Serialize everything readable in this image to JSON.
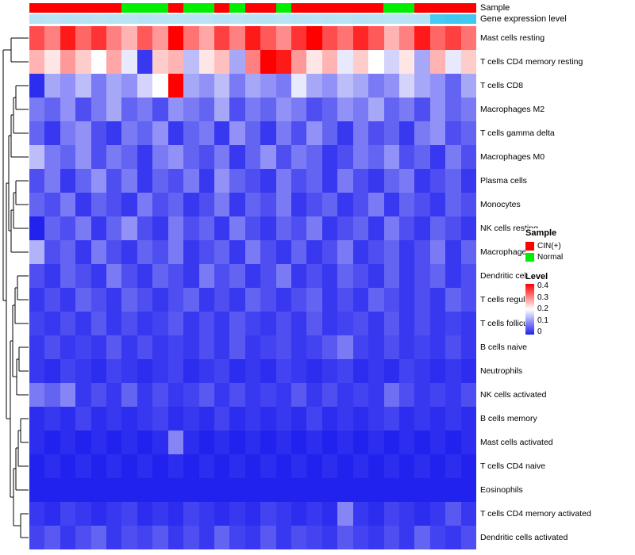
{
  "annotations": {
    "sample_label": "Sample",
    "gene_label": "Gene expression level",
    "sample_values": [
      "CIN(+)",
      "CIN(+)",
      "CIN(+)",
      "CIN(+)",
      "CIN(+)",
      "CIN(+)",
      "Normal",
      "Normal",
      "Normal",
      "CIN(+)",
      "Normal",
      "Normal",
      "CIN(+)",
      "Normal",
      "CIN(+)",
      "CIN(+)",
      "Normal",
      "CIN(+)",
      "CIN(+)",
      "CIN(+)",
      "CIN(+)",
      "CIN(+)",
      "CIN(+)",
      "Normal",
      "Normal",
      "CIN(+)",
      "CIN(+)",
      "CIN(+)",
      "CIN(+)"
    ],
    "gene_values": [
      0.15,
      0.14,
      0.16,
      0.15,
      0.13,
      0.15,
      0.14,
      0.16,
      0.15,
      0.14,
      0.15,
      0.13,
      0.16,
      0.14,
      0.15,
      0.16,
      0.14,
      0.15,
      0.13,
      0.15,
      0.14,
      0.16,
      0.15,
      0.14,
      0.15,
      0.16,
      0.85,
      0.9,
      0.88
    ],
    "colors": {
      "CIN(+)": "#FF0000",
      "Normal": "#00EE00",
      "gene_low": "#CFE9F6",
      "gene_high": "#2EC4F0"
    }
  },
  "chart_data": {
    "type": "heatmap",
    "title": "",
    "rows": [
      "Mast cells resting",
      "T cells CD4 memory resting",
      "T cells CD8",
      "Macrophages M2",
      "T cells gamma delta",
      "Macrophages M0",
      "Plasma cells",
      "Monocytes",
      "NK cells resting",
      "Macrophages M1",
      "Dendritic cells resting",
      "T cells regulatory (Tregs)",
      "T cells follicular helper",
      "B cells naive",
      "Neutrophils",
      "NK cells activated",
      "B cells memory",
      "Mast cells activated",
      "T cells CD4 naive",
      "Eosinophils",
      "T cells CD4 memory activated",
      "Dendritic cells activated"
    ],
    "columns_count": 29,
    "value_range": [
      0,
      0.4
    ],
    "colormap": {
      "low": "#2222EE",
      "mid": "#FFFFFF",
      "high": "#FF0000",
      "midpoint": 0.2
    },
    "values": [
      [
        0.34,
        0.3,
        0.38,
        0.32,
        0.36,
        0.3,
        0.26,
        0.33,
        0.28,
        0.4,
        0.31,
        0.27,
        0.35,
        0.3,
        0.38,
        0.33,
        0.29,
        0.36,
        0.4,
        0.34,
        0.31,
        0.37,
        0.33,
        0.26,
        0.3,
        0.38,
        0.32,
        0.35,
        0.31
      ],
      [
        0.26,
        0.22,
        0.28,
        0.24,
        0.2,
        0.27,
        0.18,
        0.02,
        0.24,
        0.26,
        0.14,
        0.22,
        0.25,
        0.12,
        0.3,
        0.4,
        0.38,
        0.28,
        0.22,
        0.26,
        0.18,
        0.24,
        0.2,
        0.16,
        0.22,
        0.12,
        0.26,
        0.18,
        0.24
      ],
      [
        0.01,
        0.12,
        0.1,
        0.14,
        0.08,
        0.12,
        0.1,
        0.16,
        0.2,
        0.4,
        0.12,
        0.1,
        0.14,
        0.08,
        0.12,
        0.1,
        0.08,
        0.18,
        0.12,
        0.1,
        0.14,
        0.12,
        0.08,
        0.1,
        0.16,
        0.12,
        0.1,
        0.06,
        0.12
      ],
      [
        0.08,
        0.06,
        0.1,
        0.04,
        0.08,
        0.12,
        0.06,
        0.08,
        0.04,
        0.1,
        0.08,
        0.06,
        0.12,
        0.04,
        0.08,
        0.06,
        0.1,
        0.08,
        0.04,
        0.06,
        0.1,
        0.08,
        0.12,
        0.06,
        0.08,
        0.04,
        0.1,
        0.06,
        0.08
      ],
      [
        0.06,
        0.02,
        0.08,
        0.1,
        0.04,
        0.02,
        0.08,
        0.06,
        0.1,
        0.02,
        0.06,
        0.08,
        0.02,
        0.1,
        0.06,
        0.02,
        0.08,
        0.04,
        0.1,
        0.06,
        0.02,
        0.08,
        0.04,
        0.06,
        0.02,
        0.08,
        0.1,
        0.04,
        0.06
      ],
      [
        0.14,
        0.08,
        0.06,
        0.1,
        0.04,
        0.08,
        0.06,
        0.02,
        0.08,
        0.1,
        0.06,
        0.04,
        0.08,
        0.02,
        0.06,
        0.1,
        0.04,
        0.08,
        0.06,
        0.02,
        0.04,
        0.08,
        0.06,
        0.1,
        0.04,
        0.06,
        0.02,
        0.08,
        0.04
      ],
      [
        0.04,
        0.08,
        0.02,
        0.06,
        0.1,
        0.04,
        0.08,
        0.02,
        0.06,
        0.04,
        0.08,
        0.02,
        0.1,
        0.06,
        0.04,
        0.02,
        0.08,
        0.04,
        0.06,
        0.02,
        0.08,
        0.04,
        0.02,
        0.06,
        0.08,
        0.02,
        0.04,
        0.06,
        0.02
      ],
      [
        0.06,
        0.04,
        0.08,
        0.02,
        0.06,
        0.04,
        0.02,
        0.08,
        0.04,
        0.06,
        0.02,
        0.04,
        0.08,
        0.02,
        0.06,
        0.04,
        0.08,
        0.02,
        0.04,
        0.06,
        0.02,
        0.04,
        0.08,
        0.02,
        0.06,
        0.04,
        0.02,
        0.06,
        0.04
      ],
      [
        0.0,
        0.06,
        0.04,
        0.08,
        0.02,
        0.06,
        0.1,
        0.04,
        0.02,
        0.08,
        0.04,
        0.06,
        0.02,
        0.08,
        0.04,
        0.02,
        0.06,
        0.04,
        0.08,
        0.02,
        0.04,
        0.06,
        0.02,
        0.08,
        0.04,
        0.02,
        0.06,
        0.04,
        0.02
      ],
      [
        0.13,
        0.04,
        0.06,
        0.02,
        0.08,
        0.04,
        0.02,
        0.06,
        0.04,
        0.08,
        0.02,
        0.04,
        0.06,
        0.02,
        0.08,
        0.04,
        0.02,
        0.06,
        0.02,
        0.04,
        0.08,
        0.02,
        0.04,
        0.06,
        0.02,
        0.04,
        0.08,
        0.02,
        0.06
      ],
      [
        0.04,
        0.02,
        0.06,
        0.04,
        0.02,
        0.08,
        0.04,
        0.02,
        0.06,
        0.04,
        0.02,
        0.08,
        0.04,
        0.06,
        0.02,
        0.04,
        0.08,
        0.02,
        0.04,
        0.02,
        0.06,
        0.04,
        0.02,
        0.06,
        0.02,
        0.04,
        0.06,
        0.02,
        0.04
      ],
      [
        0.02,
        0.04,
        0.02,
        0.06,
        0.04,
        0.02,
        0.06,
        0.04,
        0.02,
        0.04,
        0.06,
        0.02,
        0.04,
        0.02,
        0.06,
        0.04,
        0.02,
        0.04,
        0.06,
        0.02,
        0.04,
        0.02,
        0.06,
        0.04,
        0.02,
        0.04,
        0.02,
        0.06,
        0.04
      ],
      [
        0.03,
        0.02,
        0.04,
        0.02,
        0.05,
        0.02,
        0.04,
        0.02,
        0.03,
        0.05,
        0.02,
        0.04,
        0.02,
        0.05,
        0.03,
        0.02,
        0.04,
        0.02,
        0.05,
        0.02,
        0.03,
        0.04,
        0.02,
        0.05,
        0.02,
        0.04,
        0.02,
        0.03,
        0.02
      ],
      [
        0.02,
        0.04,
        0.02,
        0.03,
        0.02,
        0.05,
        0.02,
        0.04,
        0.02,
        0.03,
        0.02,
        0.04,
        0.02,
        0.05,
        0.02,
        0.03,
        0.04,
        0.02,
        0.03,
        0.05,
        0.08,
        0.03,
        0.02,
        0.04,
        0.02,
        0.03,
        0.02,
        0.04,
        0.02
      ],
      [
        0.02,
        0.01,
        0.03,
        0.02,
        0.01,
        0.03,
        0.02,
        0.01,
        0.02,
        0.03,
        0.01,
        0.02,
        0.03,
        0.01,
        0.02,
        0.01,
        0.03,
        0.02,
        0.01,
        0.02,
        0.03,
        0.01,
        0.02,
        0.01,
        0.03,
        0.02,
        0.01,
        0.02,
        0.01
      ],
      [
        0.08,
        0.06,
        0.09,
        0.02,
        0.04,
        0.02,
        0.06,
        0.02,
        0.04,
        0.02,
        0.03,
        0.05,
        0.02,
        0.04,
        0.02,
        0.03,
        0.02,
        0.05,
        0.02,
        0.04,
        0.02,
        0.03,
        0.02,
        0.07,
        0.04,
        0.02,
        0.03,
        0.02,
        0.04
      ],
      [
        0.01,
        0.02,
        0.01,
        0.03,
        0.01,
        0.02,
        0.01,
        0.02,
        0.03,
        0.01,
        0.02,
        0.01,
        0.03,
        0.01,
        0.02,
        0.01,
        0.02,
        0.01,
        0.03,
        0.01,
        0.02,
        0.01,
        0.02,
        0.03,
        0.01,
        0.02,
        0.01,
        0.02,
        0.01
      ],
      [
        0.01,
        0.0,
        0.01,
        0.0,
        0.01,
        0.0,
        0.01,
        0.0,
        0.01,
        0.09,
        0.01,
        0.0,
        0.01,
        0.0,
        0.01,
        0.0,
        0.01,
        0.0,
        0.01,
        0.0,
        0.01,
        0.0,
        0.01,
        0.0,
        0.01,
        0.0,
        0.01,
        0.0,
        0.01
      ],
      [
        0.0,
        0.01,
        0.0,
        0.01,
        0.0,
        0.01,
        0.0,
        0.01,
        0.0,
        0.01,
        0.0,
        0.01,
        0.0,
        0.01,
        0.0,
        0.01,
        0.0,
        0.01,
        0.0,
        0.01,
        0.0,
        0.01,
        0.0,
        0.01,
        0.0,
        0.01,
        0.0,
        0.01,
        0.0
      ],
      [
        0.0,
        0.0,
        0.0,
        0.0,
        0.0,
        0.0,
        0.0,
        0.0,
        0.0,
        0.0,
        0.0,
        0.0,
        0.0,
        0.0,
        0.0,
        0.0,
        0.0,
        0.0,
        0.0,
        0.0,
        0.0,
        0.0,
        0.0,
        0.0,
        0.0,
        0.0,
        0.0,
        0.0,
        0.0
      ],
      [
        0.02,
        0.01,
        0.03,
        0.02,
        0.01,
        0.02,
        0.03,
        0.01,
        0.02,
        0.01,
        0.03,
        0.02,
        0.01,
        0.02,
        0.01,
        0.03,
        0.02,
        0.01,
        0.02,
        0.01,
        0.09,
        0.02,
        0.01,
        0.03,
        0.02,
        0.01,
        0.02,
        0.05,
        0.02
      ],
      [
        0.03,
        0.05,
        0.02,
        0.04,
        0.06,
        0.02,
        0.04,
        0.03,
        0.05,
        0.02,
        0.04,
        0.02,
        0.06,
        0.03,
        0.02,
        0.05,
        0.02,
        0.04,
        0.03,
        0.02,
        0.05,
        0.03,
        0.02,
        0.04,
        0.02,
        0.06,
        0.03,
        0.02,
        0.04
      ]
    ],
    "column_annotations": {
      "Sample": "categorical red/green bar (CIN(+) vs Normal)",
      "Gene expression level": "continuous light-blue/cyan bar"
    },
    "legend_position": "right"
  },
  "legend": {
    "sample_title": "Sample",
    "sample_items": [
      {
        "label": "CIN(+)",
        "color": "#FF0000"
      },
      {
        "label": "Normal",
        "color": "#00EE00"
      }
    ],
    "level_title": "Level",
    "level_ticks": [
      "0.4",
      "0.3",
      "0.2",
      "0.1",
      "0"
    ]
  }
}
